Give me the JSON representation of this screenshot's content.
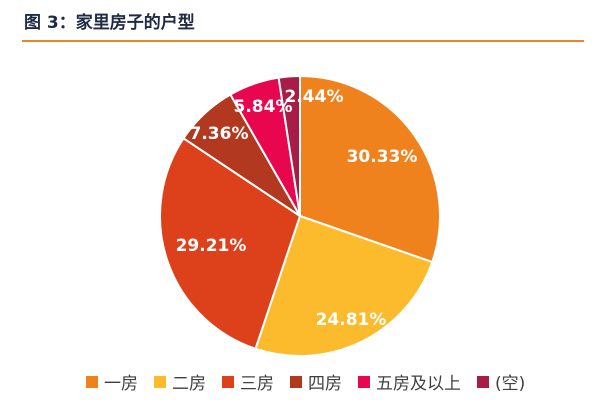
{
  "title": "图 3：家里房子的户型",
  "colors": {
    "rule": "#e8862a",
    "label": "#ffffff",
    "separator": "#ffffff"
  },
  "chart_data": {
    "type": "pie",
    "title": "",
    "slices": [
      {
        "name": "一房",
        "value": 30.33,
        "label": "30.33%",
        "color": "#f0821e"
      },
      {
        "name": "二房",
        "value": 24.81,
        "label": "24.81%",
        "color": "#fbbb2c"
      },
      {
        "name": "三房",
        "value": 29.21,
        "label": "29.21%",
        "color": "#dd411c"
      },
      {
        "name": "四房",
        "value": 7.36,
        "label": "7.36%",
        "color": "#b2391f"
      },
      {
        "name": "五房及以上",
        "value": 5.84,
        "label": "5.84%",
        "color": "#e8064f"
      },
      {
        "name": "(空)",
        "value": 2.44,
        "label": "2.44%",
        "color": "#a81c45"
      }
    ],
    "start_angle_deg": 0,
    "direction": "clockwise",
    "legend_position": "bottom"
  }
}
